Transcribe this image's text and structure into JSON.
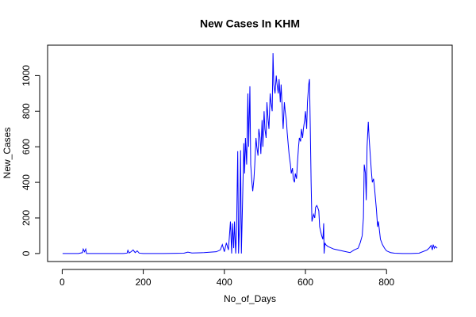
{
  "chart_data": {
    "type": "line",
    "title": "New Cases In KHM",
    "x_label": "No_of_Days",
    "y_label": "New_Cases",
    "x": [
      1,
      40,
      50,
      52,
      55,
      58,
      60,
      100,
      150,
      160,
      162,
      165,
      170,
      175,
      180,
      185,
      190,
      200,
      250,
      300,
      310,
      320,
      350,
      380,
      390,
      395,
      400,
      405,
      410,
      415,
      418,
      420,
      423,
      425,
      428,
      430,
      433,
      435,
      438,
      440,
      442,
      445,
      448,
      450,
      452,
      455,
      458,
      460,
      463,
      465,
      468,
      470,
      473,
      475,
      478,
      480,
      483,
      485,
      488,
      490,
      493,
      495,
      498,
      500,
      503,
      505,
      508,
      510,
      513,
      515,
      518,
      520,
      522,
      525,
      528,
      530,
      533,
      535,
      538,
      540,
      543,
      545,
      548,
      550,
      553,
      555,
      558,
      560,
      563,
      565,
      568,
      570,
      573,
      575,
      578,
      580,
      583,
      585,
      588,
      590,
      593,
      595,
      598,
      600,
      603,
      605,
      608,
      610,
      612,
      614,
      616,
      618,
      620,
      623,
      625,
      628,
      630,
      633,
      635,
      638,
      640,
      643,
      645,
      646,
      648,
      650,
      655,
      660,
      670,
      680,
      690,
      700,
      710,
      720,
      730,
      735,
      740,
      743,
      745,
      748,
      750,
      752,
      755,
      757,
      760,
      763,
      765,
      768,
      770,
      773,
      775,
      778,
      780,
      785,
      790,
      795,
      800,
      810,
      820,
      840,
      860,
      880,
      900,
      905,
      910,
      913,
      915,
      918,
      920,
      925
    ],
    "series": [
      {
        "name": "New_Cases",
        "color": "#0000ff",
        "values": [
          0,
          0,
          5,
          25,
          10,
          25,
          0,
          0,
          0,
          2,
          18,
          3,
          10,
          20,
          5,
          15,
          2,
          0,
          0,
          2,
          8,
          3,
          5,
          10,
          20,
          50,
          10,
          60,
          20,
          180,
          0,
          170,
          30,
          180,
          0,
          120,
          575,
          0,
          200,
          580,
          0,
          300,
          620,
          450,
          650,
          500,
          900,
          600,
          940,
          500,
          400,
          350,
          420,
          500,
          650,
          600,
          550,
          700,
          650,
          560,
          750,
          600,
          800,
          700,
          650,
          850,
          750,
          700,
          900,
          850,
          800,
          1126,
          950,
          900,
          1000,
          950,
          900,
          980,
          850,
          950,
          800,
          700,
          850,
          800,
          750,
          680,
          600,
          550,
          500,
          450,
          480,
          420,
          400,
          450,
          420,
          500,
          600,
          650,
          630,
          700,
          650,
          700,
          750,
          800,
          700,
          850,
          950,
          980,
          700,
          400,
          180,
          200,
          220,
          200,
          260,
          270,
          260,
          240,
          150,
          120,
          100,
          80,
          170,
          0,
          60,
          50,
          40,
          35,
          25,
          20,
          15,
          10,
          5,
          20,
          30,
          60,
          100,
          200,
          500,
          450,
          300,
          600,
          740,
          650,
          550,
          450,
          400,
          420,
          380,
          300,
          250,
          150,
          180,
          80,
          50,
          30,
          15,
          5,
          2,
          0,
          0,
          2,
          20,
          30,
          45,
          20,
          50,
          30,
          40,
          30
        ]
      }
    ],
    "xlim": [
      -36,
      962
    ],
    "ylim": [
      -45,
      1171
    ],
    "xticks": [
      0,
      200,
      400,
      600,
      800
    ],
    "yticks": [
      0,
      200,
      400,
      600,
      800,
      1000
    ]
  }
}
